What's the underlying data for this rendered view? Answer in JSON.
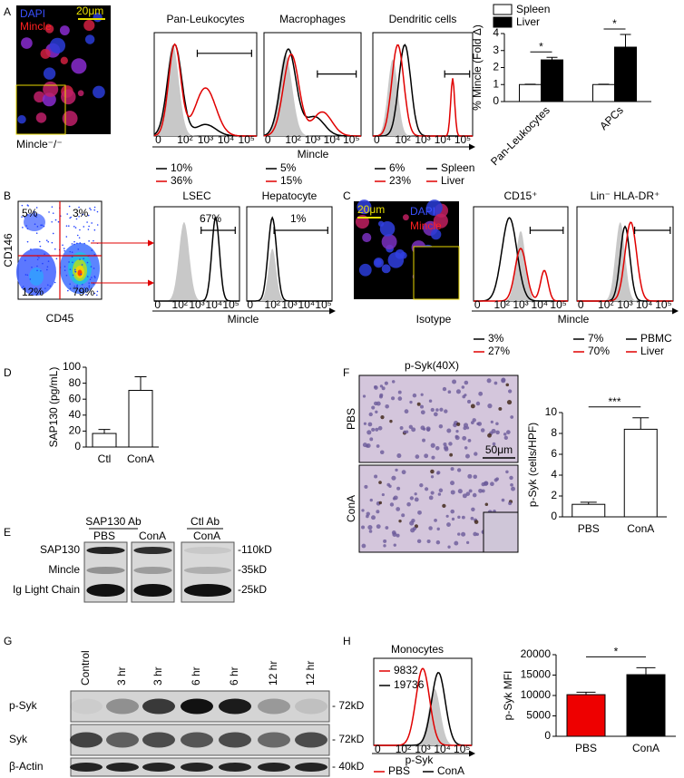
{
  "chart_data": [
    {
      "type": "bar",
      "ylabel": "% Mincle (Fold Δ)",
      "categories": [
        "Pan-Leukocytes",
        "APCs"
      ],
      "series": [
        {
          "name": "Spleen",
          "color": "#ffffff",
          "values": [
            1,
            1
          ],
          "errors": [
            0.02,
            0.02
          ]
        },
        {
          "name": "Liver",
          "color": "#000000",
          "values": [
            2.45,
            3.2
          ],
          "errors": [
            0.15,
            0.75
          ]
        }
      ],
      "ylim": [
        0,
        4
      ],
      "yticks": [
        0,
        1,
        2,
        3,
        4
      ],
      "significance": [
        "*",
        "*"
      ],
      "legend": "top"
    },
    {
      "type": "bar",
      "ylabel": "SAP130 (pg/mL)",
      "categories": [
        "Ctl",
        "ConA"
      ],
      "values": [
        17,
        71
      ],
      "errors": [
        5,
        17
      ],
      "color": "#ffffff",
      "ylim": [
        0,
        100
      ],
      "yticks": [
        0,
        20,
        40,
        60,
        80,
        100
      ]
    },
    {
      "type": "bar",
      "ylabel": "p-Syk (cells/HPF)",
      "categories": [
        "PBS",
        "ConA"
      ],
      "values": [
        1.2,
        8.4
      ],
      "errors": [
        0.2,
        1.1
      ],
      "color": "#ffffff",
      "ylim": [
        0,
        10
      ],
      "yticks": [
        0,
        2,
        4,
        6,
        8,
        10
      ],
      "significance": [
        "***"
      ]
    },
    {
      "type": "bar",
      "ylabel": "p-Syk MFI",
      "categories": [
        "PBS",
        "ConA"
      ],
      "values": [
        10200,
        15100
      ],
      "errors": [
        600,
        1700
      ],
      "colors": [
        "#ee0000",
        "#000000"
      ],
      "ylim": [
        0,
        20000
      ],
      "yticks": [
        0,
        5000,
        10000,
        15000,
        20000
      ],
      "significance": [
        "*"
      ]
    }
  ],
  "flow_axis_ticks": [
    "0",
    "10²",
    "10³",
    "10⁴",
    "10⁵"
  ],
  "panels": {
    "A": {
      "label": "A",
      "image": {
        "stains": [
          "DAPI",
          "Mincle"
        ],
        "scale": "20μm",
        "inset": "Mincle⁻/⁻"
      },
      "flow": {
        "titles": [
          "Pan-Leukocytes",
          "Macrophages",
          "Dendritic cells"
        ],
        "axis": "Mincle",
        "percents": [
          [
            "10%",
            "36%"
          ],
          [
            "5%",
            "15%"
          ],
          [
            "6%",
            "23%"
          ]
        ],
        "legend": [
          "Spleen",
          "Liver"
        ]
      }
    },
    "B": {
      "label": "B",
      "scatter": {
        "quadrants": [
          "5%",
          "3%",
          "12%",
          "79%"
        ],
        "ylabel": "CD146",
        "xlabel": "CD45"
      },
      "flow": {
        "titles": [
          "LSEC",
          "Hepatocyte"
        ],
        "gates": [
          "67%",
          "1%"
        ],
        "axis": "Mincle"
      }
    },
    "C": {
      "label": "C",
      "image": {
        "scale": "20μm",
        "stains": [
          "DAPI",
          "Mincle"
        ],
        "inset": "Isotype"
      },
      "flow": {
        "titles": [
          "CD15⁺",
          "Lin⁻ HLA-DR⁺"
        ],
        "axis": "Mincle",
        "percents": [
          [
            "3%",
            "27%"
          ],
          [
            "7%",
            "70%"
          ]
        ],
        "legend": [
          "PBMC",
          "Liver"
        ]
      }
    },
    "D": {
      "label": "D"
    },
    "E": {
      "label": "E",
      "groups": [
        "SAP130 Ab",
        "Ctl Ab"
      ],
      "lanes": [
        "PBS",
        "ConA",
        "ConA"
      ],
      "rows": [
        "SAP130",
        "Mincle",
        "Ig Light Chain"
      ],
      "sizes": [
        "-110kD",
        "-35kD",
        "-25kD"
      ]
    },
    "F": {
      "label": "F",
      "title": "p-Syk(40X)",
      "rows": [
        "PBS",
        "ConA"
      ],
      "scale": "50μm"
    },
    "G": {
      "label": "G",
      "lanes": [
        "Control",
        "3 hr",
        "3 hr",
        "6 hr",
        "6 hr",
        "12 hr",
        "12 hr"
      ],
      "rows": [
        "p-Syk",
        "Syk",
        "β-Actin"
      ],
      "sizes": [
        "- 72kD",
        "- 72kD",
        "- 40kD"
      ]
    },
    "H": {
      "label": "H",
      "title": "Monocytes",
      "mfi": [
        "9832",
        "19736"
      ],
      "axis": "p-Syk",
      "legend": [
        "PBS",
        "ConA"
      ]
    }
  }
}
